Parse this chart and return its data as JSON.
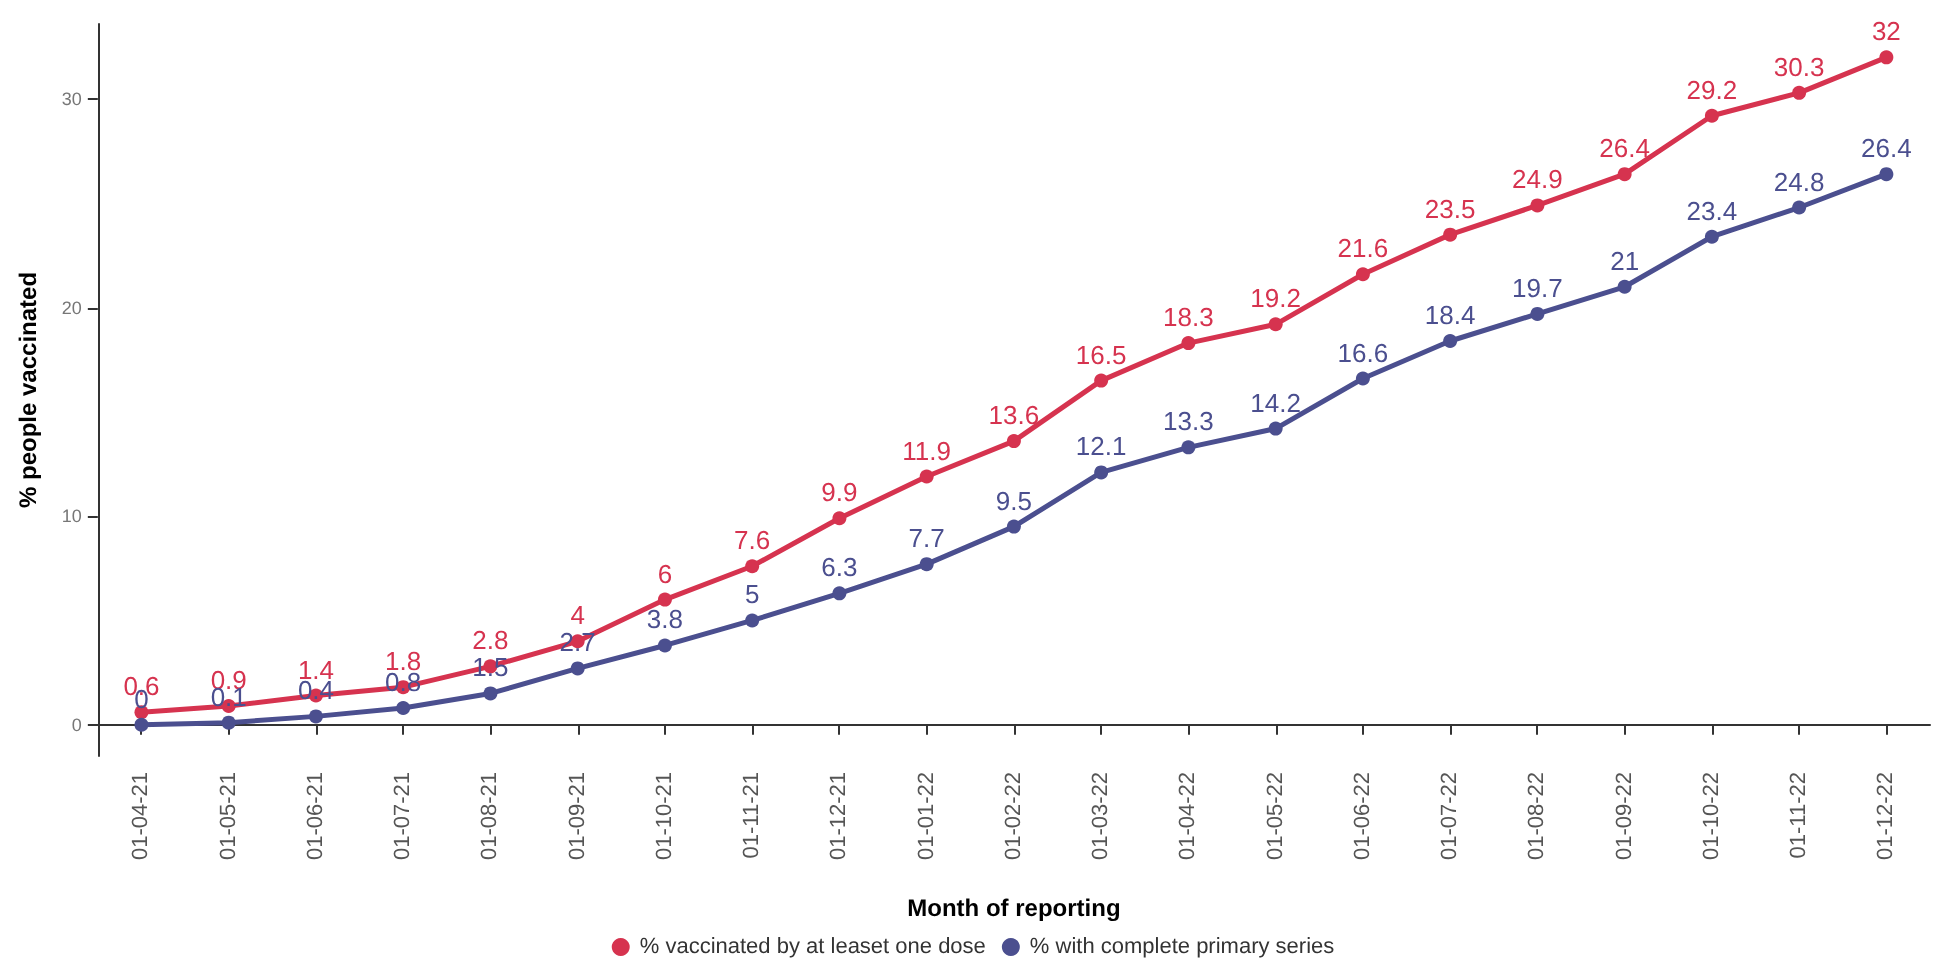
{
  "chart_data": {
    "type": "line",
    "xlabel": "Month of reporting",
    "ylabel": "% people vaccinated",
    "categories": [
      "01-04-21",
      "01-05-21",
      "01-06-21",
      "01-07-21",
      "01-08-21",
      "01-09-21",
      "01-10-21",
      "01-11-21",
      "01-12-21",
      "01-01-22",
      "01-02-22",
      "01-03-22",
      "01-04-22",
      "01-05-22",
      "01-06-22",
      "01-07-22",
      "01-08-22",
      "01-09-22",
      "01-10-22",
      "01-11-22",
      "01-12-22"
    ],
    "series": [
      {
        "name": "% vaccinated by at leaset one dose",
        "color": "#d6334f",
        "values": [
          0.6,
          0.9,
          1.4,
          1.8,
          2.8,
          4,
          6,
          7.6,
          9.9,
          11.9,
          13.6,
          16.5,
          18.3,
          19.2,
          21.6,
          23.5,
          24.9,
          26.4,
          29.2,
          30.3,
          32
        ]
      },
      {
        "name": "% with complete primary series",
        "color": "#4b4f8f",
        "values": [
          0,
          0.1,
          0.4,
          0.8,
          1.5,
          2.7,
          3.8,
          5,
          6.3,
          7.7,
          9.5,
          12.1,
          13.3,
          14.2,
          16.6,
          18.4,
          19.7,
          21,
          23.4,
          24.8,
          26.4
        ]
      }
    ],
    "ylim": [
      -1.5,
      33.6
    ],
    "yticks": [
      0,
      10,
      20,
      30
    ],
    "grid": false,
    "legend": "bottom",
    "marker": "circle",
    "line_style": "solid",
    "data_labels": true
  }
}
